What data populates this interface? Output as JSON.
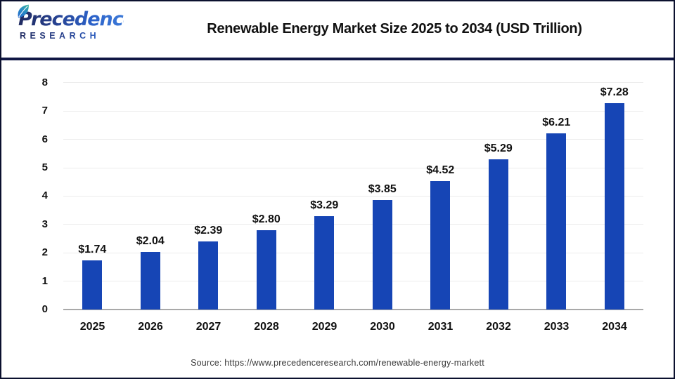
{
  "header": {
    "logo": {
      "wordmark": "Precedence",
      "subtext": "RESEARCH",
      "navy": "#1f2a60",
      "blue": "#2c62c9",
      "leaf_icon": "leaf-icon"
    },
    "title": "Renewable Energy Market Size 2025 to 2034 (USD Trillion)"
  },
  "chart_data": {
    "type": "bar",
    "title": "Renewable Energy Market Size 2025 to 2034 (USD Trillion)",
    "categories": [
      "2025",
      "2026",
      "2027",
      "2028",
      "2029",
      "2030",
      "2031",
      "2032",
      "2033",
      "2034"
    ],
    "values": [
      1.74,
      2.04,
      2.39,
      2.8,
      3.29,
      3.85,
      4.52,
      5.29,
      6.21,
      7.28
    ],
    "value_labels": [
      "$1.74",
      "$2.04",
      "$2.39",
      "$2.80",
      "$3.29",
      "$3.85",
      "$4.52",
      "$5.29",
      "$6.21",
      "$7.28"
    ],
    "xlabel": "",
    "ylabel": "",
    "ylim": [
      0,
      8
    ],
    "yticks": [
      0,
      1,
      2,
      3,
      4,
      5,
      6,
      7,
      8
    ],
    "grid": "horizontal",
    "legend_position": "none",
    "bar_color": "#1645b5",
    "gridline_color": "#ececec",
    "axis_line_color": "#a9a9a9"
  },
  "footer": {
    "source": "Source: https://www.precedenceresearch.com/renewable-energy-markett"
  }
}
